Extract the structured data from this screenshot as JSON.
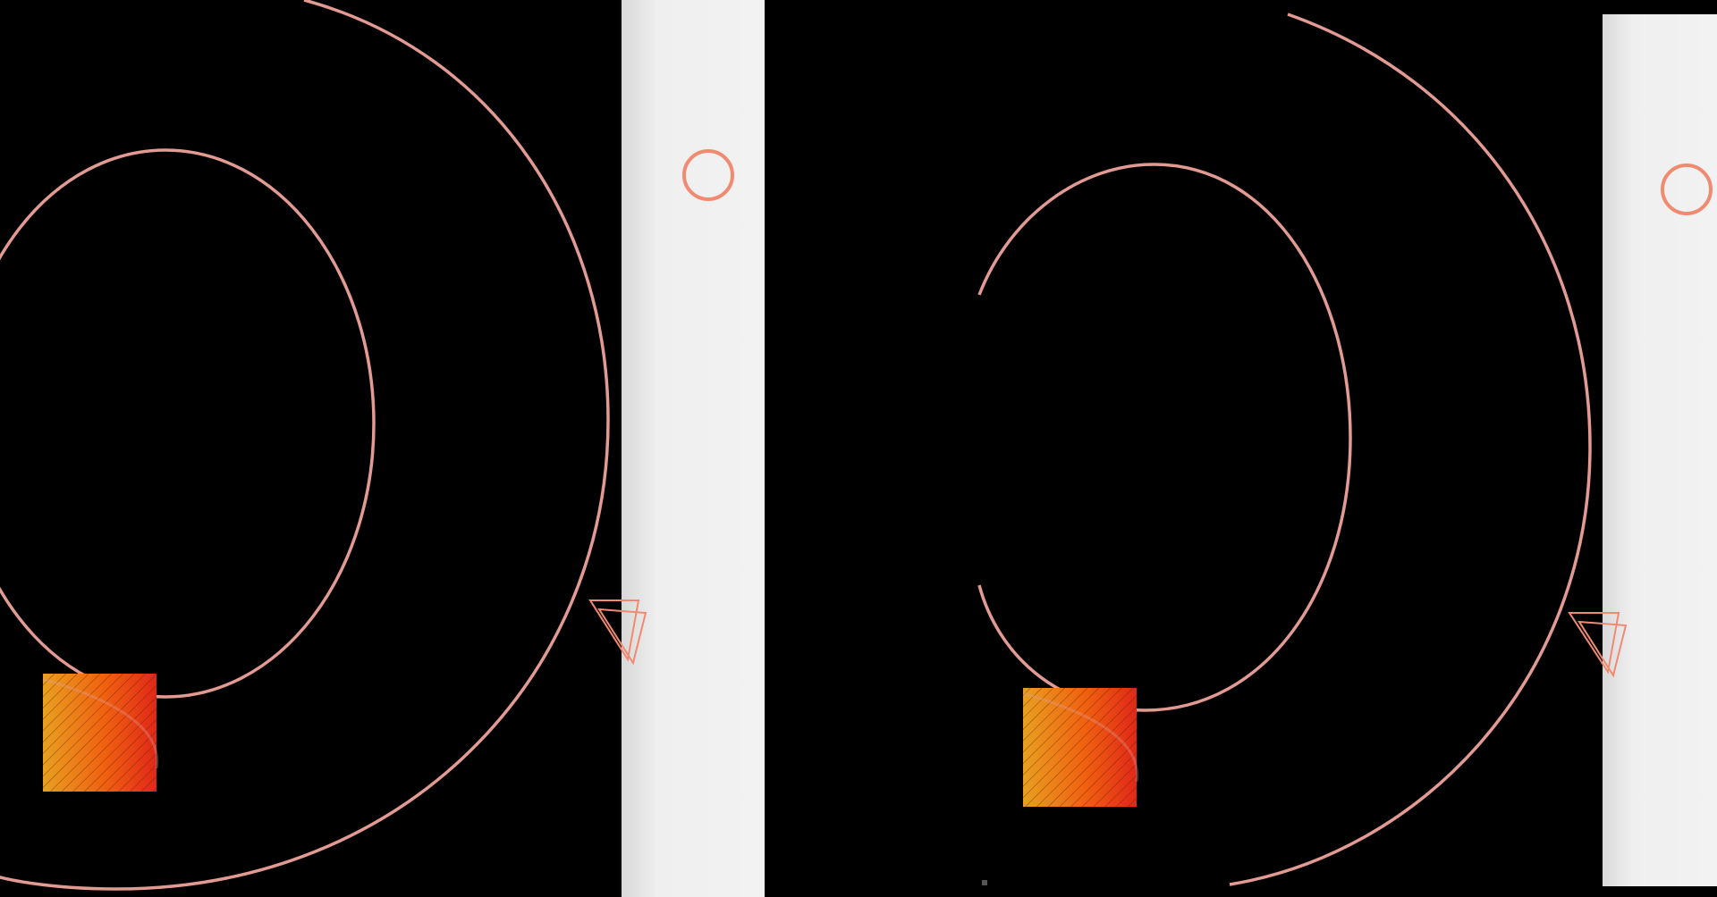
{
  "scene": {
    "background_color": "#000000",
    "ring_color": "#e29a92",
    "accent_color": "#f08a70",
    "panel_color": "#f0f0f0",
    "square_gradient": [
      "#e8a020",
      "#f06010",
      "#e02818"
    ],
    "panels": [
      {
        "name": "left",
        "elements": [
          "outer-ring",
          "inner-ring",
          "side-bar",
          "small-circle-icon",
          "triangle-icon",
          "gradient-square"
        ]
      },
      {
        "name": "right",
        "elements": [
          "outer-ring",
          "inner-ring",
          "side-bar",
          "small-circle-icon",
          "triangle-icon",
          "gradient-square"
        ]
      }
    ]
  }
}
